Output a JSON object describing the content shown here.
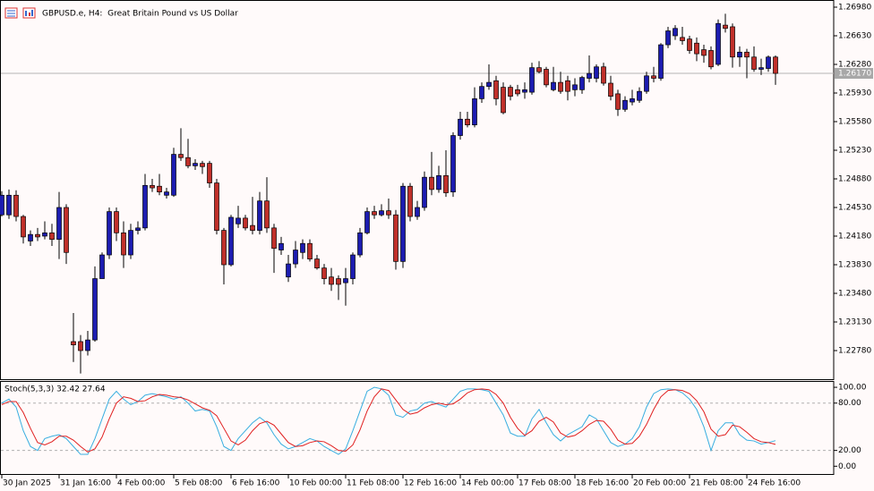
{
  "chart_data": [
    {
      "type": "candlestick",
      "title": "GBPUSD.e, H4:  Great Britain Pound vs US Dollar",
      "categories": [
        "30 Jan 2025",
        null,
        null,
        null,
        null,
        null,
        null,
        null,
        "31 Jan 16:00",
        null,
        null,
        null,
        null,
        null,
        null,
        null,
        "4 Feb 00:00",
        null,
        null,
        null,
        null,
        null,
        null,
        null,
        "5 Feb 08:00",
        null,
        null,
        null,
        null,
        null,
        null,
        null,
        "6 Feb 16:00",
        null,
        null,
        null,
        null,
        null,
        null,
        null,
        "10 Feb 00:00",
        null,
        null,
        null,
        null,
        null,
        null,
        null,
        "11 Feb 08:00",
        null,
        null,
        null,
        null,
        null,
        null,
        null,
        "12 Feb 16:00",
        null,
        null,
        null,
        null,
        null,
        null,
        null,
        "14 Feb 00:00",
        null,
        null,
        null,
        null,
        null,
        null,
        null,
        "17 Feb 08:00",
        null,
        null,
        null,
        null,
        null,
        null,
        null,
        "18 Feb 16:00",
        null,
        null,
        null,
        null,
        null,
        null,
        null,
        "20 Feb 00:00",
        null,
        null,
        null,
        null,
        null,
        null,
        null,
        "21 Feb 08:00",
        null,
        null,
        null,
        null,
        null,
        null,
        null,
        "24 Feb 16:00",
        null,
        null,
        null,
        null
      ],
      "open": [
        1.2444,
        1.2444,
        1.2468,
        1.2442,
        1.2412,
        1.242,
        1.2418,
        1.2422,
        1.2414,
        1.2453,
        1.2289,
        1.2289,
        1.2278,
        1.2291,
        1.2366,
        1.2395,
        1.2448,
        1.2422,
        1.2395,
        1.2425,
        1.2428,
        1.248,
        1.2479,
        1.2468,
        1.2468,
        1.2518,
        1.2514,
        1.2504,
        1.2507,
        1.2507,
        1.2483,
        1.2425,
        1.2383,
        1.2433,
        1.244,
        1.2431,
        1.2425,
        1.2461,
        1.2428,
        1.2401,
        1.2368,
        1.2384,
        1.2398,
        1.2409,
        1.239,
        1.2379,
        1.2368,
        1.2366,
        1.2361,
        1.2366,
        1.2395,
        1.2422,
        1.2448,
        1.2444,
        1.2449,
        1.2444,
        1.2387,
        1.2479,
        1.2442,
        1.2453,
        1.249,
        1.2475,
        1.2492,
        1.2472,
        1.2541,
        1.2561,
        1.2554,
        1.2586,
        1.2601,
        1.2608,
        1.26,
        1.26,
        1.2597,
        1.2594,
        1.2594,
        1.2624,
        1.2622,
        1.2597,
        1.2606,
        1.2608,
        1.2597,
        1.2597,
        1.2611,
        1.2611,
        1.2625,
        1.2605,
        1.2592,
        1.2573,
        1.2582,
        1.2584,
        1.2595,
        1.2614,
        1.2611,
        1.2652,
        1.2663,
        1.2661,
        1.2659,
        1.2654,
        1.2646,
        1.2645,
        1.2628,
        1.2676,
        1.2674,
        1.2637,
        1.2643,
        1.2637,
        1.2622,
        1.2623,
        1.2637
      ],
      "high": [
        1.2473,
        1.2475,
        1.2474,
        1.2444,
        1.2425,
        1.2428,
        1.2436,
        1.2433,
        1.2472,
        1.2457,
        1.2324,
        1.2297,
        1.2302,
        1.2381,
        1.2398,
        1.2453,
        1.2453,
        1.2436,
        1.2433,
        1.2436,
        1.2494,
        1.2488,
        1.2494,
        1.2477,
        1.2526,
        1.255,
        1.2537,
        1.2512,
        1.251,
        1.251,
        1.2488,
        1.2428,
        1.2444,
        1.2455,
        1.2444,
        1.2466,
        1.2472,
        1.249,
        1.2433,
        1.2417,
        1.2395,
        1.2412,
        1.2414,
        1.2414,
        1.2395,
        1.2384,
        1.2379,
        1.237,
        1.2379,
        1.2398,
        1.2428,
        1.2453,
        1.2455,
        1.2457,
        1.2464,
        1.245,
        1.2483,
        1.2483,
        1.2461,
        1.2497,
        1.2521,
        1.2504,
        1.2523,
        1.2545,
        1.257,
        1.257,
        1.26,
        1.2606,
        1.2628,
        1.2614,
        1.2606,
        1.2603,
        1.2603,
        1.2606,
        1.263,
        1.2632,
        1.2625,
        1.2625,
        1.2619,
        1.2614,
        1.2611,
        1.2614,
        1.2639,
        1.2628,
        1.263,
        1.2614,
        1.2597,
        1.2589,
        1.2597,
        1.26,
        1.2619,
        1.2625,
        1.2654,
        1.2674,
        1.2676,
        1.2674,
        1.2663,
        1.2661,
        1.2652,
        1.265,
        1.2683,
        1.269,
        1.2678,
        1.265,
        1.2647,
        1.265,
        1.2635,
        1.2639,
        1.2639
      ],
      "low": [
        1.2442,
        1.2439,
        1.2436,
        1.2409,
        1.2406,
        1.2412,
        1.2414,
        1.2406,
        1.239,
        1.2384,
        1.2264,
        1.225,
        1.2272,
        1.2289,
        1.2366,
        1.239,
        1.2412,
        1.2379,
        1.239,
        1.242,
        1.2425,
        1.2472,
        1.2468,
        1.2464,
        1.2466,
        1.251,
        1.2501,
        1.2499,
        1.2494,
        1.2477,
        1.242,
        1.2359,
        1.2381,
        1.2428,
        1.2425,
        1.242,
        1.242,
        1.2422,
        1.2373,
        1.2395,
        1.2362,
        1.2379,
        1.239,
        1.2387,
        1.2377,
        1.2359,
        1.2351,
        1.234,
        1.2333,
        1.2359,
        1.2392,
        1.242,
        1.2439,
        1.2442,
        1.2439,
        1.2377,
        1.2379,
        1.2436,
        1.2438,
        1.2449,
        1.2468,
        1.2471,
        1.2466,
        1.2466,
        1.2536,
        1.2551,
        1.2551,
        1.2581,
        1.2597,
        1.2578,
        1.2567,
        1.2584,
        1.2589,
        1.2586,
        1.2591,
        1.2617,
        1.26,
        1.2595,
        1.2592,
        1.2584,
        1.2589,
        1.2592,
        1.2606,
        1.2606,
        1.2602,
        1.2584,
        1.2565,
        1.257,
        1.2578,
        1.2581,
        1.2592,
        1.2606,
        1.2608,
        1.2648,
        1.2658,
        1.2652,
        1.2641,
        1.2632,
        1.263,
        1.2622,
        1.2626,
        1.2667,
        1.2624,
        1.2625,
        1.2611,
        1.2619,
        1.2615,
        1.2619,
        1.2603
      ],
      "close": [
        1.2468,
        1.2468,
        1.2442,
        1.2417,
        1.242,
        1.2417,
        1.2422,
        1.2414,
        1.2453,
        1.2398,
        1.2285,
        1.2278,
        1.2291,
        1.2366,
        1.2395,
        1.2448,
        1.2422,
        1.2395,
        1.2425,
        1.2428,
        1.248,
        1.2477,
        1.2472,
        1.2472,
        1.2518,
        1.2514,
        1.2504,
        1.2507,
        1.2503,
        1.2483,
        1.2425,
        1.2383,
        1.2441,
        1.244,
        1.2428,
        1.2425,
        1.2461,
        1.2428,
        1.2403,
        1.2409,
        1.2384,
        1.2401,
        1.2409,
        1.239,
        1.2379,
        1.2366,
        1.2359,
        1.2359,
        1.2366,
        1.2395,
        1.2422,
        1.2448,
        1.2444,
        1.2449,
        1.2444,
        1.2387,
        1.2479,
        1.2442,
        1.2453,
        1.249,
        1.2475,
        1.2492,
        1.2471,
        1.2541,
        1.2561,
        1.2554,
        1.2586,
        1.2601,
        1.2606,
        1.2586,
        1.2569,
        1.2589,
        1.2592,
        1.2597,
        1.2624,
        1.2619,
        1.2603,
        1.2606,
        1.2595,
        1.2595,
        1.2603,
        1.2612,
        1.2617,
        1.2625,
        1.2605,
        1.2589,
        1.2573,
        1.2584,
        1.2586,
        1.2595,
        1.2614,
        1.2611,
        1.2652,
        1.2669,
        1.2672,
        1.2657,
        1.2645,
        1.2641,
        1.2639,
        1.2625,
        1.2678,
        1.2672,
        1.2637,
        1.2643,
        1.2637,
        1.2622,
        1.2624,
        1.2637,
        1.2617
      ],
      "up_color": "#1c1cb0",
      "down_color": "#c0302a",
      "ylim": [
        1.2243,
        1.270675
      ],
      "yticks": [
        {
          "value": 1.2698,
          "label": "1.26980"
        },
        {
          "value": 1.2663,
          "label": "1.26630"
        },
        {
          "value": 1.2628,
          "label": "1.26280"
        },
        {
          "value": 1.2593,
          "label": "1.25930"
        },
        {
          "value": 1.2558,
          "label": "1.25580"
        },
        {
          "value": 1.2523,
          "label": "1.25230"
        },
        {
          "value": 1.2488,
          "label": "1.24880"
        },
        {
          "value": 1.2453,
          "label": "1.24530"
        },
        {
          "value": 1.2418,
          "label": "1.24180"
        },
        {
          "value": 1.2383,
          "label": "1.23830"
        },
        {
          "value": 1.2348,
          "label": "1.23480"
        },
        {
          "value": 1.2313,
          "label": "1.23130"
        },
        {
          "value": 1.2278,
          "label": "1.22780"
        }
      ],
      "current_price": {
        "value": 1.2617,
        "label": "1.26170"
      }
    },
    {
      "type": "line",
      "title": "Stoch(5,3,3) 32.42 27.64",
      "series": [
        {
          "color": "#38aee0",
          "values": [
            80,
            85,
            75,
            45,
            25,
            20,
            35,
            38,
            40,
            35,
            25,
            15,
            15,
            35,
            60,
            85,
            95,
            85,
            78,
            82,
            90,
            92,
            90,
            88,
            85,
            88,
            80,
            70,
            72,
            70,
            50,
            25,
            20,
            35,
            45,
            55,
            62,
            55,
            40,
            28,
            22,
            25,
            30,
            35,
            32,
            25,
            20,
            15,
            22,
            45,
            70,
            95,
            100,
            98,
            90,
            65,
            62,
            70,
            72,
            80,
            82,
            78,
            75,
            85,
            95,
            98,
            98,
            97,
            95,
            80,
            65,
            42,
            38,
            38,
            60,
            72,
            55,
            40,
            32,
            40,
            45,
            50,
            65,
            60,
            45,
            30,
            25,
            28,
            35,
            50,
            75,
            92,
            97,
            98,
            97,
            93,
            85,
            72,
            50,
            20,
            45,
            55,
            55,
            40,
            33,
            32,
            28,
            30,
            32.42
          ]
        },
        {
          "color": "#e02020",
          "values": [
            78,
            82,
            82,
            68,
            48,
            30,
            27,
            31,
            38,
            38,
            33,
            25,
            18,
            22,
            37,
            60,
            80,
            88,
            86,
            82,
            83,
            88,
            91,
            90,
            88,
            87,
            84,
            79,
            74,
            71,
            64,
            48,
            32,
            27,
            33,
            45,
            54,
            57,
            52,
            41,
            30,
            25,
            26,
            30,
            32,
            31,
            26,
            20,
            19,
            27,
            46,
            70,
            88,
            98,
            96,
            84,
            72,
            66,
            68,
            74,
            78,
            80,
            78,
            79,
            85,
            93,
            97,
            98,
            97,
            91,
            80,
            62,
            48,
            39,
            45,
            57,
            62,
            56,
            42,
            37,
            39,
            45,
            53,
            58,
            57,
            47,
            33,
            28,
            29,
            38,
            53,
            72,
            88,
            96,
            97,
            96,
            92,
            83,
            69,
            47,
            38,
            40,
            52,
            50,
            43,
            35,
            31,
            30,
            27.64
          ]
        }
      ],
      "ylim": [
        -11,
        108
      ],
      "yticks": [
        {
          "value": 100,
          "label": "100.00"
        },
        {
          "value": 80,
          "label": "80.00"
        },
        {
          "value": 20,
          "label": "20.00"
        },
        {
          "value": 0,
          "label": "0.00"
        }
      ],
      "levels": [
        80,
        20
      ]
    }
  ]
}
